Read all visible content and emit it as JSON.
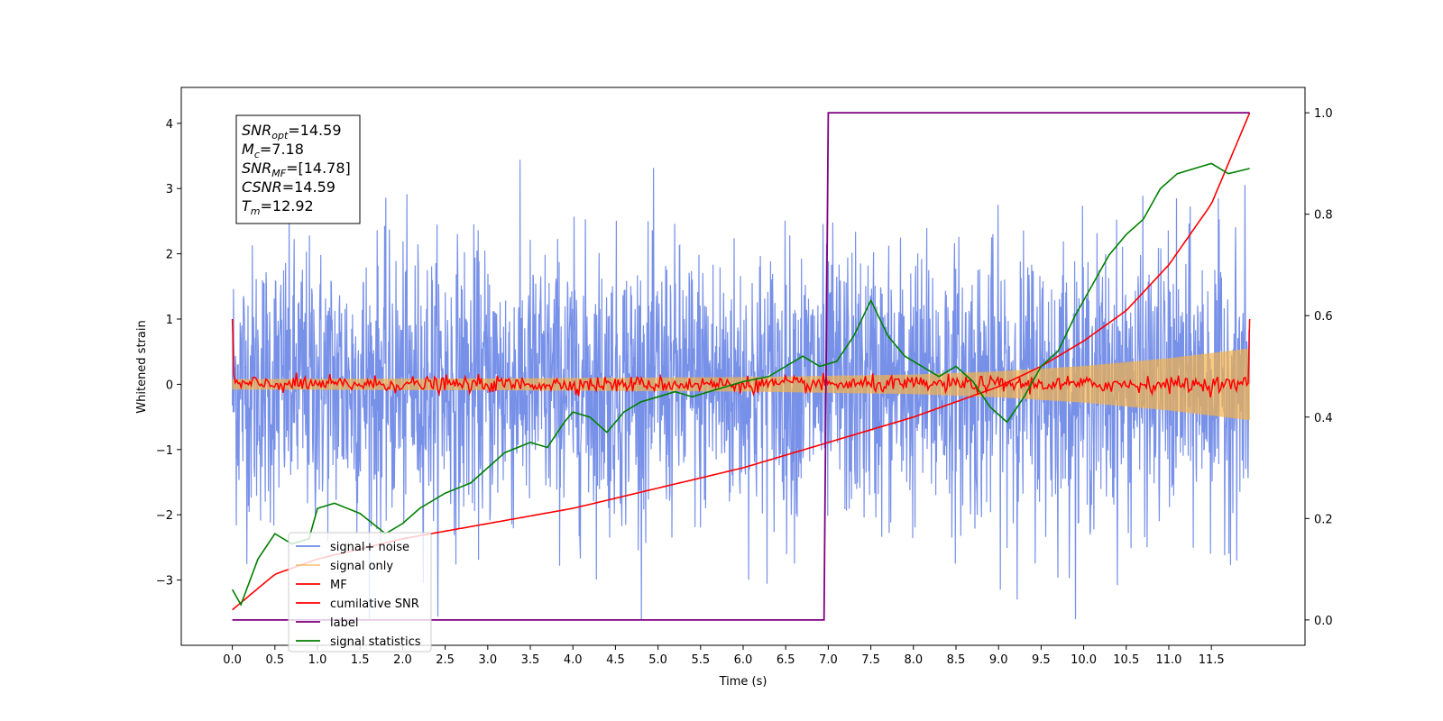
{
  "chart_data": {
    "type": "line",
    "title": "",
    "xlabel": "Time (s)",
    "ylabel": "Whitened strain",
    "y2label": "",
    "xlim": [
      -0.6,
      12.6
    ],
    "ylim": [
      -4.0,
      4.55
    ],
    "y2lim": [
      -0.05,
      1.05
    ],
    "x_ticks": [
      0.0,
      0.5,
      1.0,
      1.5,
      2.0,
      2.5,
      3.0,
      3.5,
      4.0,
      4.5,
      5.0,
      5.5,
      6.0,
      6.5,
      7.0,
      7.5,
      8.0,
      8.5,
      9.0,
      9.5,
      10.0,
      10.5,
      11.0,
      11.5
    ],
    "x_tick_labels": [
      "0.0",
      "0.5",
      "1.0",
      "1.5",
      "2.0",
      "2.5",
      "3.0",
      "3.5",
      "4.0",
      "4.5",
      "5.0",
      "5.5",
      "6.0",
      "6.5",
      "7.0",
      "7.5",
      "8.0",
      "8.5",
      "9.0",
      "9.5",
      "10.0",
      "10.5",
      "11.0",
      "11.5"
    ],
    "y_ticks": [
      -3,
      -2,
      -1,
      0,
      1,
      2,
      3,
      4
    ],
    "y_tick_labels": [
      "−3",
      "−2",
      "−1",
      "0",
      "1",
      "2",
      "3",
      "4"
    ],
    "y2_ticks": [
      0.0,
      0.2,
      0.4,
      0.6,
      0.8,
      1.0
    ],
    "y2_tick_labels": [
      "0.0",
      "0.2",
      "0.4",
      "0.6",
      "0.8",
      "1.0"
    ],
    "grid": false,
    "legend_position": "bottom-left",
    "series": [
      {
        "name": "signal+ noise",
        "color": "#6b87e6",
        "axis": "left",
        "description_values": {
          "noise_std": 1.05,
          "x_range": [
            0.0,
            11.95
          ]
        }
      },
      {
        "name": "signal only",
        "color": "#f5b24a",
        "axis": "left",
        "envelope": {
          "x": [
            0.0,
            3.0,
            6.0,
            8.0,
            9.0,
            10.0,
            11.0,
            11.95
          ],
          "amplitude": [
            0.08,
            0.09,
            0.11,
            0.15,
            0.2,
            0.28,
            0.4,
            0.55
          ]
        }
      },
      {
        "name": "MF",
        "color": "#ff0000",
        "axis": "left",
        "values_note": "noisy around 0",
        "start_value": 1.0,
        "end_value": 1.0
      },
      {
        "name": "cumilative SNR",
        "color": "#ff0000",
        "axis": "right",
        "x": [
          0.0,
          0.5,
          1.0,
          2.0,
          3.0,
          4.0,
          5.0,
          6.0,
          7.0,
          8.0,
          9.0,
          9.5,
          10.0,
          10.5,
          11.0,
          11.5,
          11.95
        ],
        "y": [
          0.02,
          0.09,
          0.12,
          0.16,
          0.19,
          0.22,
          0.26,
          0.3,
          0.35,
          0.4,
          0.46,
          0.5,
          0.55,
          0.61,
          0.7,
          0.82,
          1.0
        ]
      },
      {
        "name": "label",
        "color": "#800080",
        "axis": "right",
        "x": [
          0.0,
          6.95,
          7.0,
          11.95
        ],
        "y": [
          0.0,
          0.0,
          1.0,
          1.0
        ]
      },
      {
        "name": "signal statistics",
        "color": "#008000",
        "axis": "right",
        "x": [
          0.0,
          0.1,
          0.3,
          0.5,
          0.7,
          0.9,
          1.0,
          1.2,
          1.5,
          1.8,
          2.0,
          2.2,
          2.5,
          2.8,
          3.0,
          3.2,
          3.5,
          3.7,
          3.9,
          4.0,
          4.2,
          4.4,
          4.6,
          4.8,
          5.0,
          5.2,
          5.4,
          5.6,
          5.8,
          6.0,
          6.3,
          6.5,
          6.7,
          6.9,
          7.1,
          7.3,
          7.5,
          7.7,
          7.9,
          8.1,
          8.3,
          8.5,
          8.7,
          8.9,
          9.1,
          9.3,
          9.5,
          9.7,
          9.9,
          10.1,
          10.3,
          10.5,
          10.7,
          10.9,
          11.1,
          11.3,
          11.5,
          11.7,
          11.95
        ],
        "y": [
          0.06,
          0.03,
          0.12,
          0.17,
          0.15,
          0.16,
          0.22,
          0.23,
          0.21,
          0.17,
          0.19,
          0.22,
          0.25,
          0.27,
          0.3,
          0.33,
          0.35,
          0.34,
          0.39,
          0.41,
          0.4,
          0.37,
          0.41,
          0.43,
          0.44,
          0.45,
          0.44,
          0.45,
          0.46,
          0.47,
          0.48,
          0.5,
          0.52,
          0.5,
          0.51,
          0.56,
          0.63,
          0.56,
          0.52,
          0.5,
          0.48,
          0.5,
          0.47,
          0.42,
          0.39,
          0.44,
          0.5,
          0.53,
          0.6,
          0.66,
          0.72,
          0.76,
          0.79,
          0.85,
          0.88,
          0.89,
          0.9,
          0.88,
          0.89
        ]
      }
    ],
    "annotation_box": {
      "lines": [
        {
          "sym": "SNR",
          "sub": "opt",
          "val": "=14.59"
        },
        {
          "sym": "M",
          "sub": "c",
          "val": "=7.18"
        },
        {
          "sym": "SNR",
          "sub": "MF",
          "val": "=[14.78]"
        },
        {
          "sym": "CSNR",
          "sub": "",
          "val": "=14.59"
        },
        {
          "sym": "T",
          "sub": "m",
          "val": "=12.92"
        }
      ]
    }
  }
}
